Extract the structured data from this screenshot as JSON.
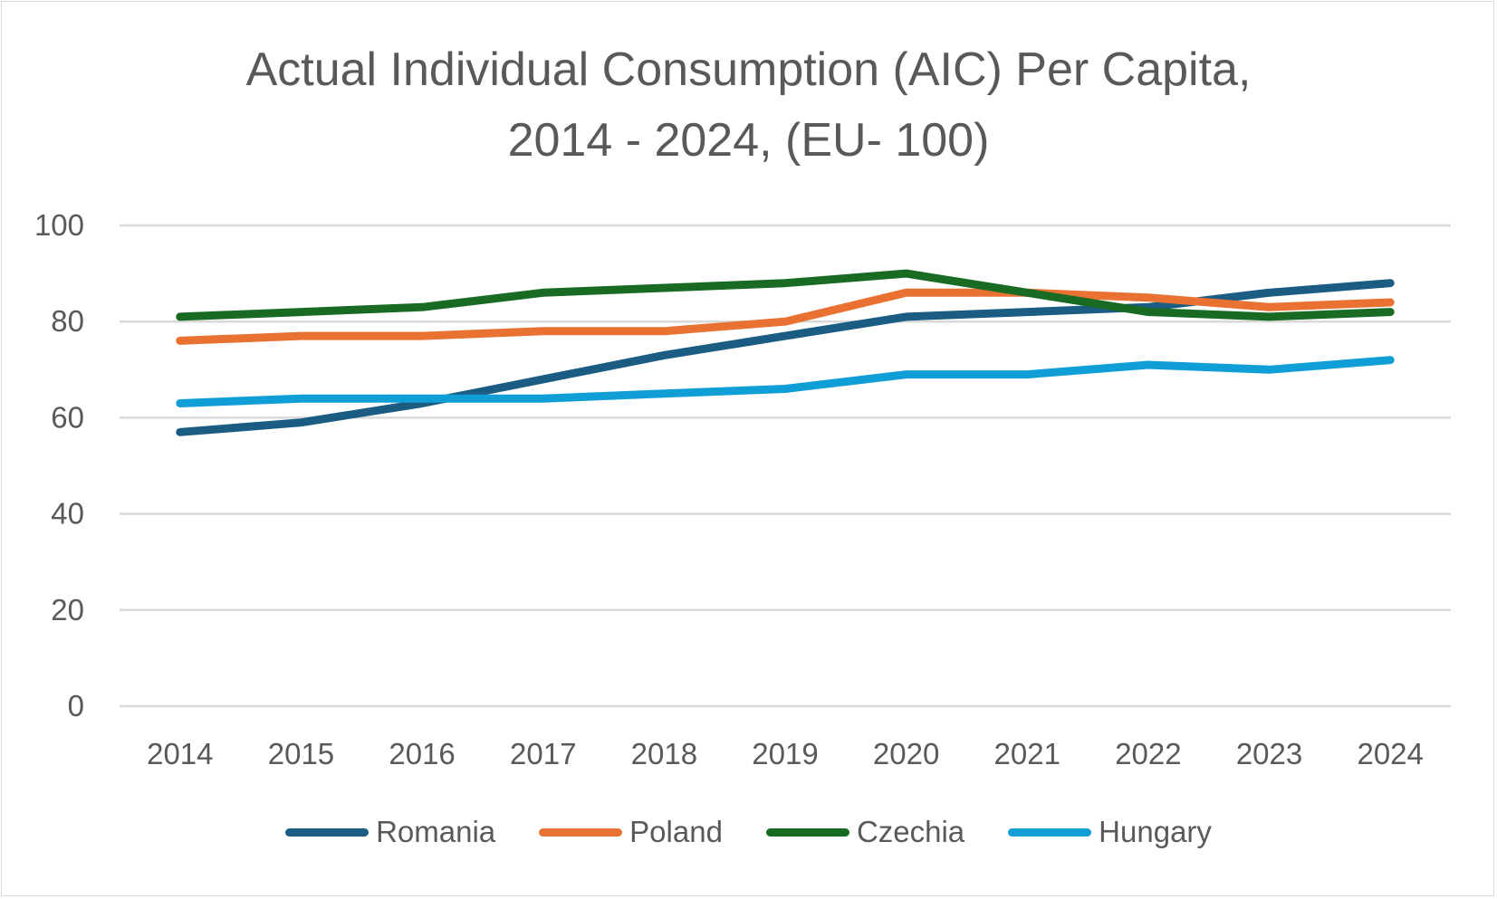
{
  "chart_data": {
    "type": "line",
    "title": "Actual Individual Consumption (AIC) Per Capita, 2014 - 2024, (EU- 100)",
    "title_lines": [
      "Actual Individual Consumption (AIC) Per Capita,",
      "2014 - 2024, (EU- 100)"
    ],
    "xlabel": "",
    "ylabel": "",
    "x": [
      "2014",
      "2015",
      "2016",
      "2017",
      "2018",
      "2019",
      "2020",
      "2021",
      "2022",
      "2023",
      "2024"
    ],
    "ylim": [
      0,
      100
    ],
    "yticks": [
      0,
      20,
      40,
      60,
      80,
      100
    ],
    "grid": true,
    "legend_position": "bottom",
    "series": [
      {
        "name": "Romania",
        "color": "#1a5c82",
        "values": [
          57,
          59,
          63,
          68,
          73,
          77,
          81,
          82,
          83,
          86,
          88
        ]
      },
      {
        "name": "Poland",
        "color": "#e97132",
        "values": [
          76,
          77,
          77,
          78,
          78,
          80,
          86,
          86,
          85,
          83,
          84
        ]
      },
      {
        "name": "Czechia",
        "color": "#196b24",
        "values": [
          81,
          82,
          83,
          86,
          87,
          88,
          90,
          86,
          82,
          81,
          82
        ]
      },
      {
        "name": "Hungary",
        "color": "#0f9ed5",
        "values": [
          63,
          64,
          64,
          64,
          65,
          66,
          69,
          69,
          71,
          70,
          72
        ]
      }
    ]
  }
}
